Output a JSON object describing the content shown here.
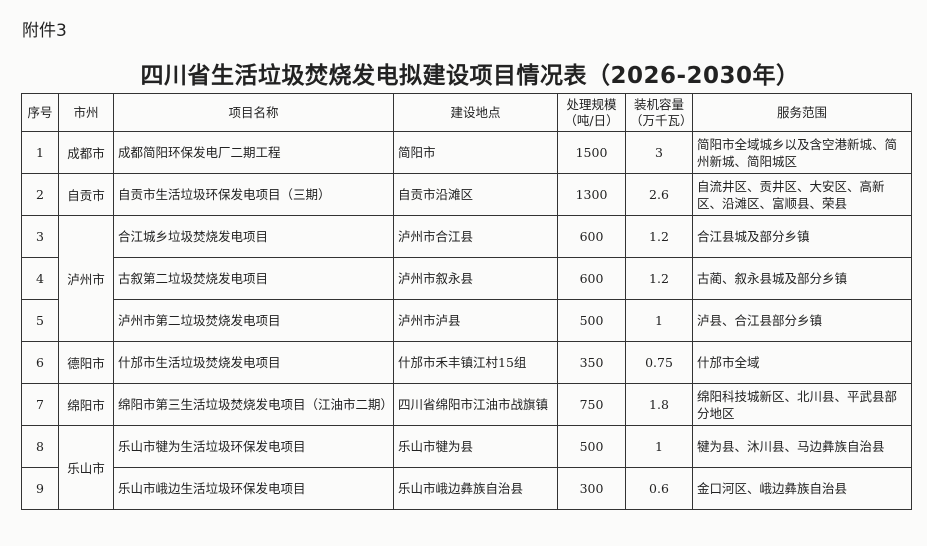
{
  "attachment_label": "附件3",
  "title": "四川省生活垃圾焚烧发电拟建设项目情况表（2026-2030年）",
  "table": {
    "headers": [
      "序号",
      "市州",
      "项目名称",
      "建设地点",
      "处理规模（吨/日）",
      "装机容量（万千瓦）",
      "服务范围"
    ],
    "header_lines": {
      "scale": [
        "处理规模",
        "（吨/日）"
      ],
      "capacity": [
        "装机容量",
        "（万千瓦）"
      ]
    },
    "rows": [
      {
        "no": "1",
        "city": "成都市",
        "name": "成都简阳环保发电厂二期工程",
        "site": "简阳市",
        "scale": "1500",
        "capacity": "3",
        "scope": "简阳市全域城乡以及含空港新城、简州新城、简阳城区"
      },
      {
        "no": "2",
        "city": "自贡市",
        "name": "自贡市生活垃圾环保发电项目（三期）",
        "site": "自贡市沿滩区",
        "scale": "1300",
        "capacity": "2.6",
        "scope": "自流井区、贡井区、大安区、高新区、沿滩区、富顺县、荣县"
      },
      {
        "no": "3",
        "city": "泸州市",
        "name": "合江城乡垃圾焚烧发电项目",
        "site": "泸州市合江县",
        "scale": "600",
        "capacity": "1.2",
        "scope": "合江县城及部分乡镇"
      },
      {
        "no": "4",
        "city": "",
        "name": "古叙第二垃圾焚烧发电项目",
        "site": "泸州市叙永县",
        "scale": "600",
        "capacity": "1.2",
        "scope": "古蔺、叙永县城及部分乡镇"
      },
      {
        "no": "5",
        "city": "",
        "name": "泸州市第二垃圾焚烧发电项目",
        "site": "泸州市泸县",
        "scale": "500",
        "capacity": "1",
        "scope": "泸县、合江县部分乡镇"
      },
      {
        "no": "6",
        "city": "德阳市",
        "name": "什邡市生活垃圾焚烧发电项目",
        "site": "什邡市禾丰镇江村15组",
        "scale": "350",
        "capacity": "0.75",
        "scope": "什邡市全域"
      },
      {
        "no": "7",
        "city": "绵阳市",
        "name": "绵阳市第三生活垃圾焚烧发电项目（江油市二期）",
        "site": "四川省绵阳市江油市战旗镇",
        "scale": "750",
        "capacity": "1.8",
        "scope": "绵阳科技城新区、北川县、平武县部分地区"
      },
      {
        "no": "8",
        "city": "乐山市",
        "name": "乐山市犍为生活垃圾环保发电项目",
        "site": "乐山市犍为县",
        "scale": "500",
        "capacity": "1",
        "scope": "犍为县、沐川县、马边彝族自治县"
      },
      {
        "no": "9",
        "city": "",
        "name": "乐山市峨边生活垃圾环保发电项目",
        "site": "乐山市峨边彝族自治县",
        "scale": "300",
        "capacity": "0.6",
        "scope": "金口河区、峨边彝族自治县"
      }
    ]
  }
}
